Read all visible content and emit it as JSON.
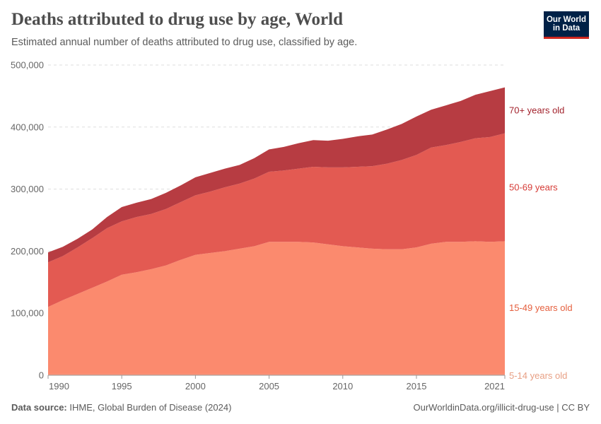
{
  "header": {
    "title": "Deaths attributed to drug use by age, World",
    "subtitle": "Estimated annual number of deaths attributed to drug use, classified by age.",
    "logo_line1": "Our World",
    "logo_line2": "in Data"
  },
  "footer": {
    "source_label": "Data source:",
    "source_text": "IHME, Global Burden of Disease (2024)",
    "link": "OurWorldinData.org/illicit-drug-use | CC BY"
  },
  "chart_data": {
    "type": "area",
    "stacked": true,
    "title": "Deaths attributed to drug use by age, World",
    "xlabel": "",
    "ylabel": "",
    "xlim": [
      1990,
      2021
    ],
    "ylim": [
      0,
      500000
    ],
    "grid": true,
    "legend": "right-inline",
    "x_ticks": [
      "1990",
      "1995",
      "2000",
      "2005",
      "2010",
      "2015",
      "2021"
    ],
    "y_ticks": [
      "0",
      "100,000",
      "200,000",
      "300,000",
      "400,000",
      "500,000"
    ],
    "x": [
      1990,
      1991,
      1992,
      1993,
      1994,
      1995,
      1996,
      1997,
      1998,
      1999,
      2000,
      2001,
      2002,
      2003,
      2004,
      2005,
      2006,
      2007,
      2008,
      2009,
      2010,
      2011,
      2012,
      2013,
      2014,
      2015,
      2016,
      2017,
      2018,
      2019,
      2020,
      2021
    ],
    "series": [
      {
        "name": "5-14 years old",
        "color": "#fb8b6e",
        "label_color": "#e8a085",
        "values": [
          1500,
          1500,
          1500,
          1500,
          1500,
          1500,
          1500,
          1500,
          1500,
          1500,
          1500,
          1500,
          1500,
          1500,
          1500,
          1500,
          1500,
          1500,
          1500,
          1500,
          1500,
          1500,
          1500,
          1500,
          1500,
          1500,
          1500,
          1500,
          1500,
          1500,
          1500,
          1500
        ]
      },
      {
        "name": "15-49 years old",
        "color": "#fb8a6e",
        "label_color": "#e5603f",
        "values": [
          108500,
          119500,
          129500,
          139500,
          149500,
          160500,
          164500,
          169500,
          175500,
          184500,
          192500,
          195500,
          198500,
          202500,
          206500,
          213500,
          213500,
          213500,
          212500,
          209500,
          206500,
          204500,
          202500,
          201500,
          201500,
          204500,
          210500,
          213500,
          213500,
          214500,
          213500,
          214500
        ]
      },
      {
        "name": "50-69 years",
        "color": "#e35a52",
        "label_color": "#d63c37",
        "values": [
          72000,
          71000,
          75000,
          80000,
          86000,
          86000,
          89000,
          89000,
          91000,
          93000,
          96000,
          99000,
          103000,
          105000,
          109000,
          113000,
          115000,
          118000,
          122000,
          124000,
          127000,
          130000,
          133000,
          138000,
          144000,
          149000,
          155000,
          156000,
          161000,
          166000,
          169000,
          174000
        ]
      },
      {
        "name": "70+ years old",
        "color": "#b73c42",
        "label_color": "#a3232d",
        "values": [
          16000,
          15000,
          14000,
          14000,
          18000,
          23000,
          23000,
          24000,
          26000,
          27000,
          29000,
          30000,
          30000,
          30000,
          33000,
          36000,
          38000,
          41000,
          43000,
          43000,
          46000,
          49000,
          51000,
          55000,
          58000,
          62000,
          61000,
          64000,
          66000,
          70000,
          74000,
          74000
        ]
      }
    ]
  }
}
